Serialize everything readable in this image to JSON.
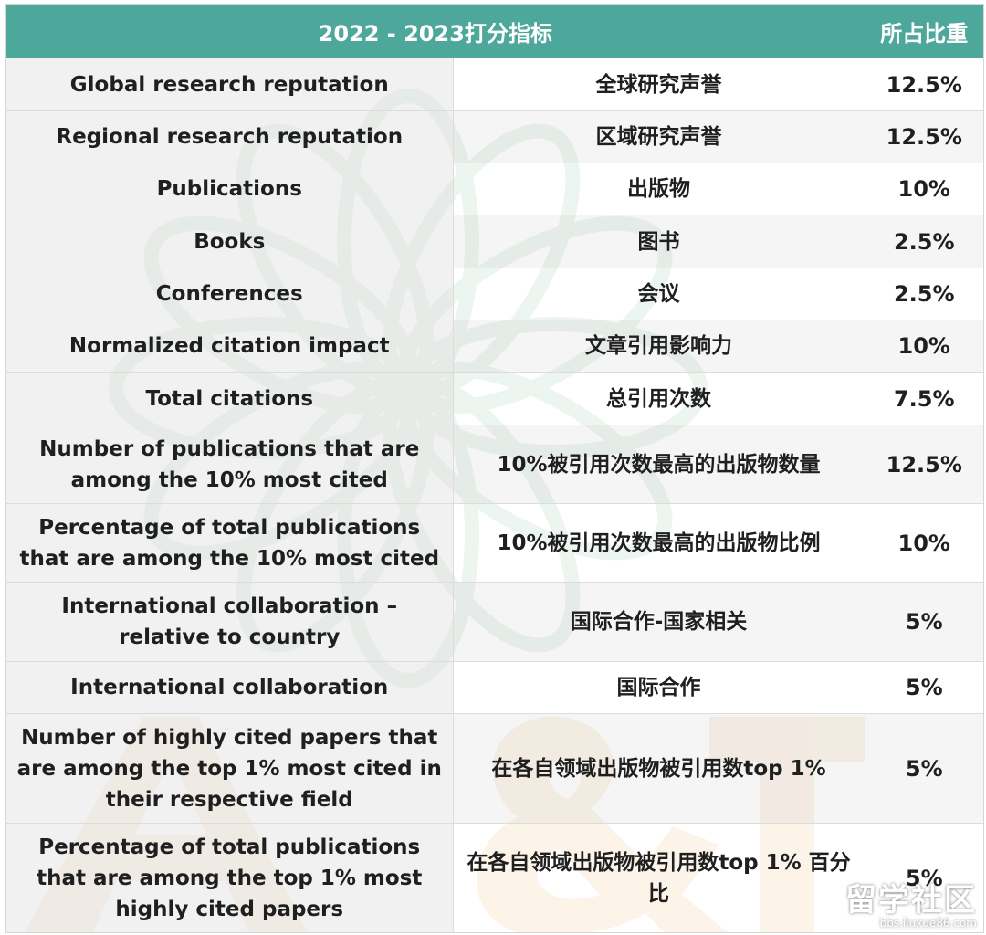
{
  "header": {
    "title": "2022 - 2023打分指标",
    "weight": "所占比重"
  },
  "rows": [
    {
      "en": "Global research reputation",
      "cn": "全球研究声誉",
      "pct": "12.5%"
    },
    {
      "en": "Regional research reputation",
      "cn": "区域研究声誉",
      "pct": "12.5%"
    },
    {
      "en": "Publications",
      "cn": "出版物",
      "pct": "10%"
    },
    {
      "en": "Books",
      "cn": "图书",
      "pct": "2.5%"
    },
    {
      "en": "Conferences",
      "cn": "会议",
      "pct": "2.5%"
    },
    {
      "en": "Normalized citation impact",
      "cn": "文章引用影响力",
      "pct": "10%"
    },
    {
      "en": "Total citations",
      "cn": "总引用次数",
      "pct": "7.5%"
    },
    {
      "en": "Number of publications that are among the 10% most cited",
      "cn": "10%被引用次数最高的出版物数量",
      "pct": "12.5%"
    },
    {
      "en": "Percentage of total publications that are among the 10% most cited",
      "cn": "10%被引用次数最高的出版物比例",
      "pct": "10%"
    },
    {
      "en": "International collaboration – relative to country",
      "cn": "国际合作-国家相关",
      "pct": "5%"
    },
    {
      "en": "International collaboration",
      "cn": "国际合作",
      "pct": "5%"
    },
    {
      "en": "Number of highly cited papers that are among the top 1% most cited in their respective field",
      "cn": "在各自领域出版物被引用数top 1%",
      "pct": "5%"
    },
    {
      "en": "Percentage of total publications that are among the top 1% most highly cited papers",
      "cn": "在各自领域出版物被引用数top 1% 百分比",
      "pct": "5%"
    }
  ],
  "watermark": {
    "logo_text": "留学社区",
    "logo_url": "bbs.liuxue86.com"
  },
  "colors": {
    "header_bg": "#4ea79b",
    "header_text": "#ffffff"
  }
}
